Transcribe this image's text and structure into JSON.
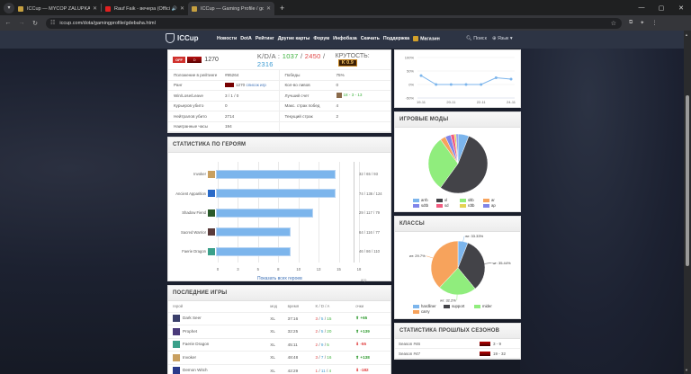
{
  "browser": {
    "tabs": [
      {
        "title": "ICCup — MYCOP ZALUPKA90",
        "favicon_color": "#c6a040",
        "active": false
      },
      {
        "title": "Rauf Faik - вечера (Official",
        "favicon_color": "#e02020",
        "active": false,
        "audio": true
      },
      {
        "title": "ICCup — Gaming Profile / gdeb",
        "favicon_color": "#c6a040",
        "active": true
      }
    ],
    "url": "iccup.com/dota/gamingprofile/gdebaha.html",
    "window_controls": [
      "—",
      "▢",
      "✕"
    ]
  },
  "site": {
    "logo": "ICCup",
    "menu": [
      "Новости",
      "DotA",
      "Рейтинг",
      "Другие карты",
      "Форум",
      "Инфобаза",
      "Скачать",
      "Поддержка",
      "Магазин"
    ],
    "search_label": "Поиск",
    "lang_label": "Язык"
  },
  "profile": {
    "status": "OFF",
    "rank_badge": "D",
    "rating": "1270",
    "kda_label": "K/D/A :",
    "kills": "1037",
    "deaths": "2450",
    "assists": "2316",
    "krut_label": "КРУТОСТЬ:",
    "krut_value": "K 0.9",
    "stats_left": [
      {
        "k": "Положение в рейтинге",
        "v": "#95264"
      },
      {
        "k": "Ранг",
        "v": "1270",
        "link": "список игр"
      },
      {
        "k": "Win/Lose/Leave",
        "v": "3 / 1 / 0"
      },
      {
        "k": "Курьеров убито",
        "v": "0"
      },
      {
        "k": "Нейтралов убито",
        "v": "2714"
      },
      {
        "k": "Наигранные часы",
        "v": "194"
      }
    ],
    "stats_right": [
      {
        "k": "Победы",
        "v": "75%"
      },
      {
        "k": "Кол-во ливов",
        "v": "0"
      },
      {
        "k": "Лучший счет",
        "v": "18 - 3 - 13"
      },
      {
        "k": "Макс. страк побед",
        "v": "4"
      },
      {
        "k": "Текущий страк",
        "v": "2"
      },
      {
        "k": "",
        "v": ""
      }
    ]
  },
  "hero_stats": {
    "title": "СТАТИСТИКА ПО ГЕРОЯМ",
    "show_all": "Показать всех героев",
    "x_unit": "игр"
  },
  "recent_games": {
    "title": "ПОСЛЕДНИЕ ИГРЫ",
    "columns": [
      "герой",
      "мод",
      "время",
      "K / D / A",
      "очки"
    ],
    "rows": [
      {
        "hero": "Dark Seer",
        "mode": "XL",
        "time": "37:16",
        "k": "3",
        "d": "5",
        "a": "15",
        "pts": "+65",
        "dir": "up",
        "icon": "#3a3f6a"
      },
      {
        "hero": "Prophet",
        "mode": "XL",
        "time": "32:25",
        "k": "2",
        "d": "5",
        "a": "20",
        "pts": "+139",
        "dir": "up",
        "icon": "#4a3a7a"
      },
      {
        "hero": "Faerie Dragon",
        "mode": "XL",
        "time": "45:11",
        "k": "2",
        "d": "9",
        "a": "5",
        "pts": "-55",
        "dir": "down",
        "icon": "#3aa08a"
      },
      {
        "hero": "Invoker",
        "mode": "XL",
        "time": "48:48",
        "k": "3",
        "d": "7",
        "a": "16",
        "pts": "+138",
        "dir": "up",
        "icon": "#c9a060"
      },
      {
        "hero": "Demon Witch",
        "mode": "XL",
        "time": "42:29",
        "k": "1",
        "d": "11",
        "a": "4",
        "pts": "-182",
        "dir": "down",
        "icon": "#2a3a8a"
      }
    ]
  },
  "modes": {
    "title": "ИГРОВЫЕ МОДЫ"
  },
  "classes": {
    "title": "КЛАССЫ"
  },
  "seasons": {
    "title": "СТАТИСТИКА ПРОШЛЫХ СЕЗОНОВ",
    "rows": [
      {
        "name": "Season #46",
        "value": "3 - 9"
      },
      {
        "name": "Season #47",
        "value": "19 - 32"
      }
    ]
  },
  "chart_data": [
    {
      "type": "bar",
      "title": "СТАТИСТИКА ПО ГЕРОЯМ",
      "orientation": "horizontal",
      "categories": [
        "Invoker",
        "Ancient Apparition",
        "Shadow Fiend",
        "Sacred Warrior",
        "Faerie Dragon"
      ],
      "values": [
        16,
        16,
        13,
        10,
        10
      ],
      "annotations": [
        "32 / 65 / 93",
        "74 / 136 / 124",
        "29 / 117 / 79",
        "64 / 116 / 77",
        "46 / 86 / 110"
      ],
      "x_ticks": [
        "0",
        "3",
        "5",
        "8",
        "10",
        "13",
        "15",
        "18"
      ],
      "xlim": [
        0,
        18
      ],
      "xlabel": "игр",
      "color": "#7cb5ec"
    },
    {
      "type": "line",
      "categories": [
        "19-11",
        "20-11",
        "21-11",
        "22-11",
        "23-11",
        "24-11",
        "25-11"
      ],
      "x_tick_labels": [
        "19-11",
        "20-11",
        "22-11",
        "24-11"
      ],
      "values": [
        33,
        0,
        0,
        0,
        0,
        25,
        20
      ],
      "y_ticks": [
        "100%",
        "50%",
        "0%",
        "-50%"
      ],
      "ylim": [
        -50,
        100
      ],
      "color": "#7cb5ec"
    },
    {
      "type": "pie",
      "title": "ИГРОВЫЕ МОДЫ",
      "labels": [
        "arrb",
        "xl",
        "sltb",
        "ar",
        "sdtb",
        "sd",
        "rdtb",
        "ap"
      ],
      "values": [
        6,
        54,
        30,
        3,
        3,
        2,
        1,
        1
      ],
      "colors": [
        "#7cb5ec",
        "#434348",
        "#90ed7d",
        "#f7a35c",
        "#8085e9",
        "#f15c80",
        "#e4d354",
        "#8085e8"
      ]
    },
    {
      "type": "pie",
      "title": "КЛАССЫ",
      "labels": [
        "hardliner",
        "support",
        "mider",
        "carry"
      ],
      "values": [
        6,
        33,
        23,
        38
      ],
      "annotations": [
        "wr: 33.33%",
        "wr: 35.44%",
        "wr: 32.2%",
        "wr: 29.7%"
      ],
      "colors": [
        "#7cb5ec",
        "#434348",
        "#90ed7d",
        "#f7a35c"
      ]
    }
  ]
}
